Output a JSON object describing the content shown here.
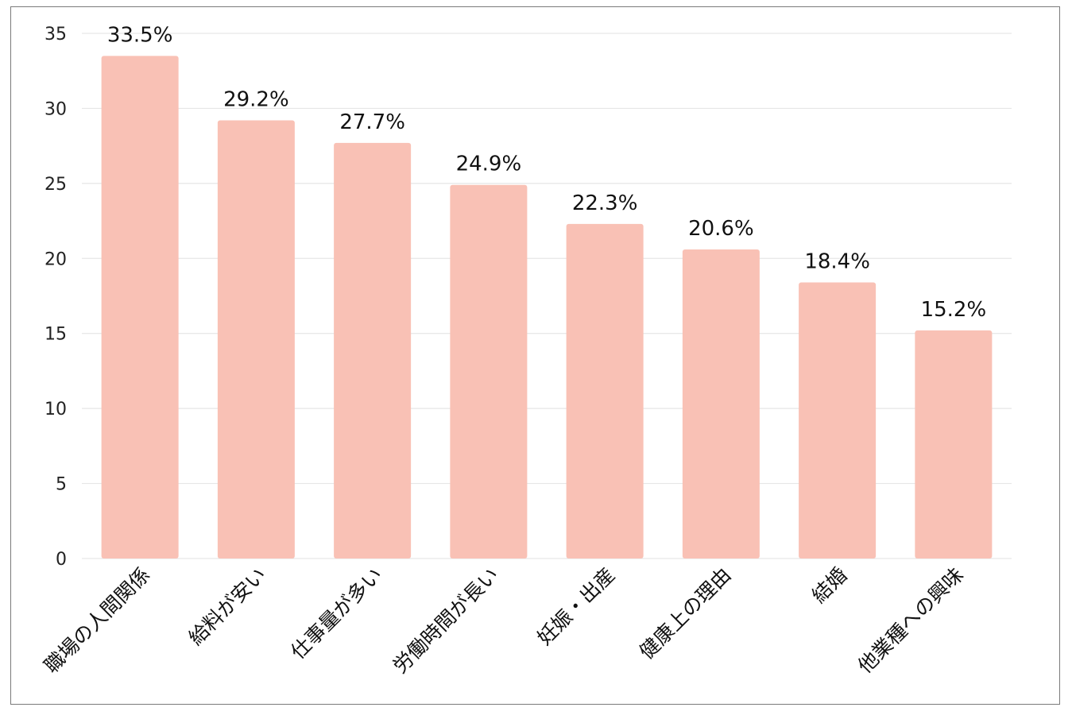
{
  "chart_data": {
    "type": "bar",
    "categories": [
      "職場の人間関係",
      "給料が安い",
      "仕事量が多い",
      "労働時間が長い",
      "妊娠・出産",
      "健康上の理由",
      "結婚",
      "他業種への興味"
    ],
    "values": [
      33.5,
      29.2,
      27.7,
      24.9,
      22.3,
      20.6,
      18.4,
      15.2
    ],
    "data_labels": [
      "33.5%",
      "29.2%",
      "27.7%",
      "24.9%",
      "22.3%",
      "20.6%",
      "18.4%",
      "15.2%"
    ],
    "yticks": [
      "0",
      "5",
      "10",
      "15",
      "20",
      "25",
      "30",
      "35"
    ],
    "ytick_values": [
      0,
      5,
      10,
      15,
      20,
      25,
      30,
      35
    ],
    "ylim": [
      0,
      35
    ],
    "grid": true,
    "legend": "none",
    "bar_color": "#f9c1b5",
    "grid_color": "#e6e6e6"
  }
}
